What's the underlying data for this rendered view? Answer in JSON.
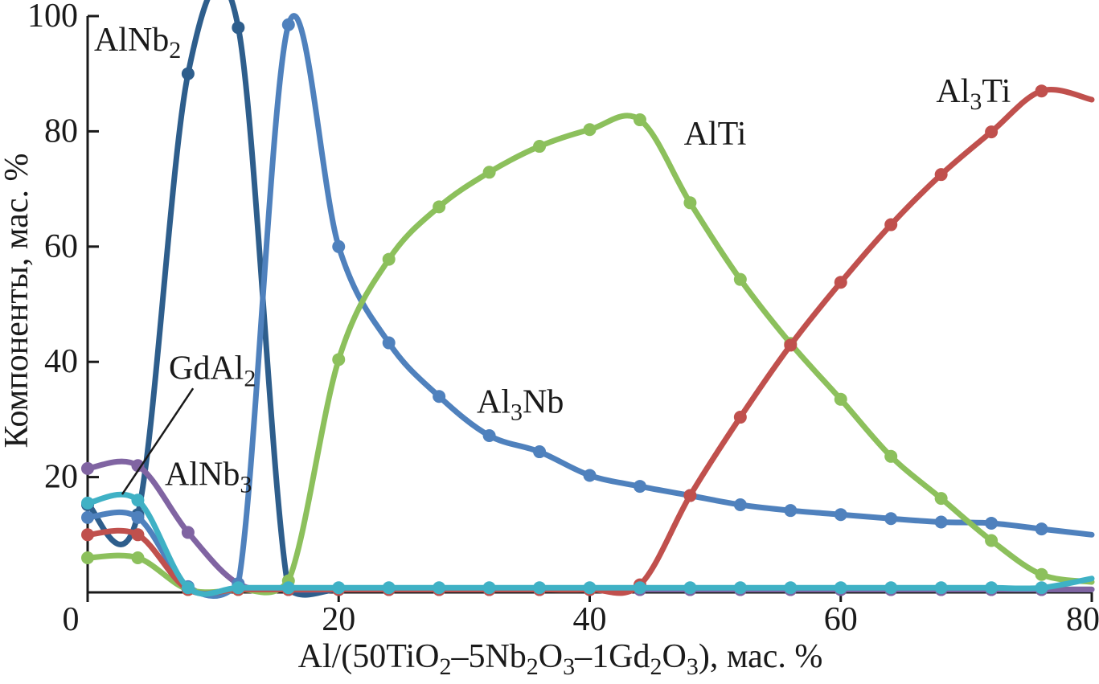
{
  "chart_data": {
    "type": "line",
    "title": "",
    "ylabel": "Компоненты, мас. %",
    "xlabel": "Al/(50TiO2–5Nb2O3–1Gd2O3), мас. %",
    "xlabel_segments": [
      {
        "t": "Al/(50TiO"
      },
      {
        "t": "2",
        "sub": true
      },
      {
        "t": "–5Nb"
      },
      {
        "t": "2",
        "sub": true
      },
      {
        "t": "O"
      },
      {
        "t": "3",
        "sub": true
      },
      {
        "t": "–1Gd"
      },
      {
        "t": "2",
        "sub": true
      },
      {
        "t": "O"
      },
      {
        "t": "3",
        "sub": true
      },
      {
        "t": "), мас. %"
      }
    ],
    "xlim": [
      0,
      80
    ],
    "ylim": [
      0,
      100
    ],
    "xticks": [
      0,
      20,
      40,
      60,
      80
    ],
    "yticks": [
      20,
      40,
      60,
      80,
      100
    ],
    "grid": false,
    "legend": "inline-labels",
    "axis_color": "#1a1a1a",
    "x": [
      0,
      4,
      8,
      12,
      16,
      20,
      24,
      28,
      32,
      36,
      40,
      44,
      48,
      52,
      56,
      60,
      64,
      68,
      72,
      76,
      80
    ],
    "series": [
      {
        "name": "AlNb2",
        "label": "AlNb2",
        "label_segments": [
          {
            "t": "AlNb"
          },
          {
            "t": "2",
            "sub": true
          }
        ],
        "color": "#2e5e8c",
        "values": [
          15.2,
          13.5,
          90,
          98,
          0.5,
          0.5,
          0.5,
          0.5,
          0.5,
          0.5,
          0.5,
          0.5,
          0.5,
          0.5,
          0.5,
          0.5,
          0.5,
          0.5,
          0.5,
          0.5,
          0.5
        ],
        "label_pos": {
          "x": 0.51,
          "y": 94.0
        }
      },
      {
        "name": "AlNb3",
        "label": "AlNb3",
        "label_segments": [
          {
            "t": "AlNb"
          },
          {
            "t": "3",
            "sub": true
          }
        ],
        "color": "#8064a2",
        "values": [
          21.5,
          22,
          10.4,
          1.5,
          0.5,
          0.5,
          0.5,
          0.5,
          0.5,
          0.5,
          0.5,
          0.5,
          0.5,
          0.5,
          0.5,
          0.5,
          0.5,
          0.5,
          0.5,
          0.5,
          0.5
        ],
        "label_pos": {
          "x": 6.15,
          "y": 18.6
        }
      },
      {
        "name": "Al3Nb",
        "label": "Al3Nb",
        "label_segments": [
          {
            "t": "Al"
          },
          {
            "t": "3",
            "sub": true
          },
          {
            "t": "Nb"
          }
        ],
        "color": "#4f81bd",
        "values": [
          13,
          13,
          1,
          1.5,
          98.5,
          60,
          43.3,
          34,
          27.2,
          24.4,
          20.3,
          18.4,
          16.8,
          15.2,
          14.2,
          13.5,
          12.8,
          12.2,
          12,
          11,
          10
        ],
        "label_pos": {
          "x": 31.0,
          "y": 31.2
        }
      },
      {
        "name": "AlTi",
        "label": "AlTi",
        "label_segments": [
          {
            "t": "AlTi"
          }
        ],
        "color": "#8cc05c",
        "values": [
          6,
          6,
          0.5,
          0.5,
          2,
          40.4,
          57.8,
          66.9,
          72.9,
          77.4,
          80.3,
          82,
          67.6,
          54.3,
          43.2,
          33.5,
          23.6,
          16.3,
          9,
          3.1,
          1.8
        ],
        "label_pos": {
          "x": 47.5,
          "y": 77.7
        }
      },
      {
        "name": "Al3Ti",
        "label": "Al3Ti",
        "label_segments": [
          {
            "t": "Al"
          },
          {
            "t": "3",
            "sub": true
          },
          {
            "t": "Ti"
          }
        ],
        "color": "#c0504d",
        "values": [
          10,
          10,
          0.5,
          0.5,
          0.5,
          0.5,
          0.5,
          0.5,
          0.5,
          0.5,
          0.5,
          1.3,
          16.8,
          30.4,
          42.9,
          53.8,
          63.8,
          72.5,
          79.9,
          87,
          85.5
        ],
        "label_pos": {
          "x": 67.6,
          "y": 85.1
        }
      },
      {
        "name": "GdAl2",
        "label": "GdAl2",
        "label_segments": [
          {
            "t": "GdAl"
          },
          {
            "t": "2",
            "sub": true
          }
        ],
        "color": "#3fb1c5",
        "values": [
          15.5,
          16,
          0.8,
          0.8,
          0.8,
          0.8,
          0.8,
          0.8,
          0.8,
          0.8,
          0.8,
          0.8,
          0.8,
          0.8,
          0.8,
          0.8,
          0.8,
          0.8,
          0.8,
          0.8,
          2.4
        ],
        "label_pos": {
          "x": 6.47,
          "y": 37.0
        },
        "leader_line": {
          "x1": 8.4,
          "y1": 35.4,
          "x2": 2.75,
          "y2": 17.0
        }
      }
    ]
  }
}
